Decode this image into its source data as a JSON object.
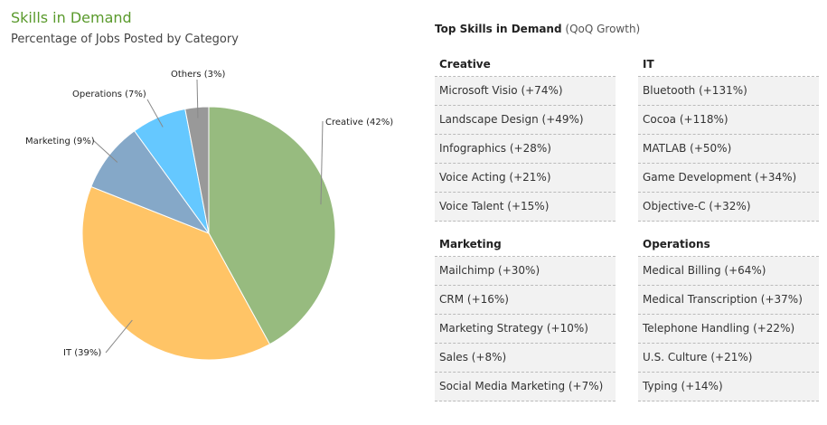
{
  "title": "Skills in Demand",
  "subtitle": "Percentage of Jobs Posted by Category",
  "chart_data": {
    "type": "pie",
    "title": "Skills in Demand",
    "subtitle": "Percentage of Jobs Posted by Category",
    "categories": [
      "Creative",
      "IT",
      "Marketing",
      "Operations",
      "Others"
    ],
    "values": [
      42,
      39,
      9,
      7,
      3
    ],
    "labels": [
      "Creative (42%)",
      "IT (39%)",
      "Marketing (9%)",
      "Operations (7%)",
      "Others (3%)"
    ],
    "colors": [
      "#97bb7f",
      "#ffc466",
      "#85a8c8",
      "#65c8ff",
      "#999999"
    ]
  },
  "panel": {
    "title_bold": "Top Skills in Demand",
    "title_suffix": "(QoQ Growth)",
    "columns": [
      [
        {
          "category": "Creative",
          "skills": [
            "Microsoft Visio (+74%)",
            "Landscape Design (+49%)",
            "Infographics (+28%)",
            "Voice Acting (+21%)",
            "Voice Talent (+15%)"
          ]
        },
        {
          "category": "Marketing",
          "skills": [
            "Mailchimp (+30%)",
            "CRM (+16%)",
            "Marketing Strategy (+10%)",
            "Sales (+8%)",
            "Social Media Marketing (+7%)"
          ]
        }
      ],
      [
        {
          "category": "IT",
          "skills": [
            "Bluetooth (+131%)",
            "Cocoa (+118%)",
            "MATLAB (+50%)",
            "Game Development (+34%)",
            "Objective-C (+32%)"
          ]
        },
        {
          "category": "Operations",
          "skills": [
            "Medical Billing (+64%)",
            "Medical Transcription (+37%)",
            "Telephone Handling (+22%)",
            "U.S. Culture (+21%)",
            "Typing (+14%)"
          ]
        }
      ]
    ]
  }
}
